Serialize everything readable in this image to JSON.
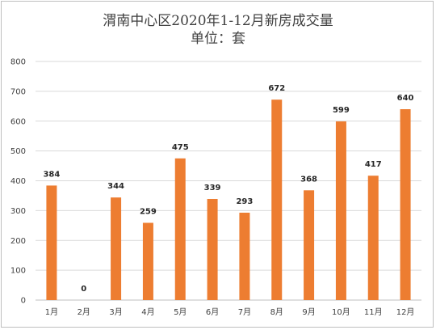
{
  "chart_data": {
    "type": "bar",
    "title": "渭南中心区2020年1-12月新房成交量",
    "subtitle": "单位：套",
    "categories": [
      "1月",
      "2月",
      "3月",
      "4月",
      "5月",
      "6月",
      "7月",
      "8月",
      "9月",
      "10月",
      "11月",
      "12月"
    ],
    "values": [
      384,
      0,
      344,
      259,
      475,
      339,
      293,
      672,
      368,
      599,
      417,
      640
    ],
    "yticks": [
      0,
      100,
      200,
      300,
      400,
      500,
      600,
      700,
      800
    ],
    "ylim": [
      0,
      800
    ],
    "grid": true,
    "legend": "none",
    "colors": {
      "bar": "#ED7D31",
      "grid": "#D9D9D9",
      "axis": "#BFBFBF"
    }
  }
}
